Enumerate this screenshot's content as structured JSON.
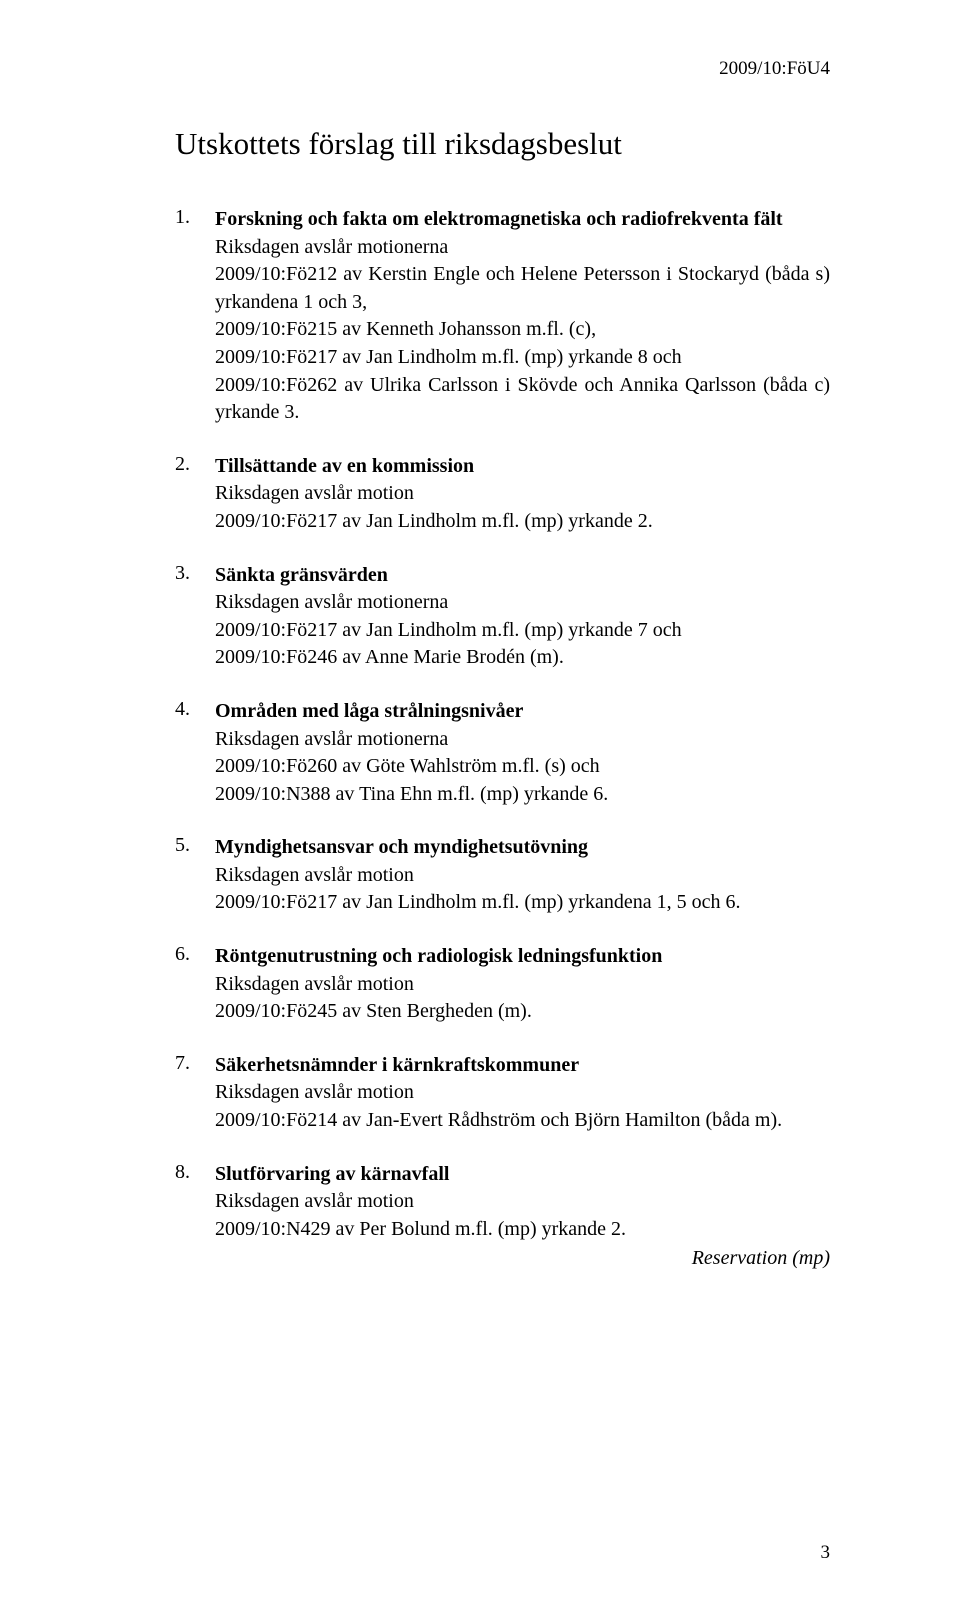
{
  "headerCode": "2009/10:FöU4",
  "mainTitle": "Utskottets förslag till riksdagsbeslut",
  "items": [
    {
      "num": "1.",
      "title": "Forskning och fakta om elektromagnetiska och radiofrekventa fält",
      "text": "Riksdagen avslår motionerna\n2009/10:Fö212 av Kerstin Engle och Helene Petersson i Stockaryd (båda s) yrkandena 1 och 3,\n2009/10:Fö215 av Kenneth Johansson m.fl. (c),\n2009/10:Fö217 av Jan Lindholm m.fl. (mp) yrkande 8 och\n2009/10:Fö262 av Ulrika Carlsson i Skövde och Annika Qarlsson (båda c) yrkande 3."
    },
    {
      "num": "2.",
      "title": "Tillsättande av en kommission",
      "text": "Riksdagen avslår motion\n2009/10:Fö217 av Jan Lindholm m.fl. (mp) yrkande 2."
    },
    {
      "num": "3.",
      "title": "Sänkta gränsvärden",
      "text": "Riksdagen avslår motionerna\n2009/10:Fö217 av Jan Lindholm m.fl. (mp) yrkande 7 och\n2009/10:Fö246 av Anne Marie Brodén (m)."
    },
    {
      "num": "4.",
      "title": "Områden med låga strålningsnivåer",
      "text": "Riksdagen avslår motionerna\n2009/10:Fö260 av Göte Wahlström m.fl. (s) och\n2009/10:N388 av Tina Ehn m.fl. (mp) yrkande 6."
    },
    {
      "num": "5.",
      "title": "Myndighetsansvar och myndighetsutövning",
      "text": "Riksdagen avslår motion\n2009/10:Fö217 av Jan Lindholm m.fl. (mp) yrkandena 1, 5 och 6."
    },
    {
      "num": "6.",
      "title": "Röntgenutrustning och radiologisk ledningsfunktion",
      "text": "Riksdagen avslår motion\n2009/10:Fö245 av Sten Bergheden (m)."
    },
    {
      "num": "7.",
      "title": "Säkerhetsnämnder i kärnkraftskommuner",
      "text": "Riksdagen avslår motion\n2009/10:Fö214 av Jan-Evert Rådhström och Björn Hamilton (båda m)."
    },
    {
      "num": "8.",
      "title": "Slutförvaring av kärnavfall",
      "text": "Riksdagen avslår motion\n2009/10:N429 av Per Bolund m.fl. (mp) yrkande 2.",
      "reservation": "Reservation (mp)"
    }
  ],
  "pageNumber": "3"
}
